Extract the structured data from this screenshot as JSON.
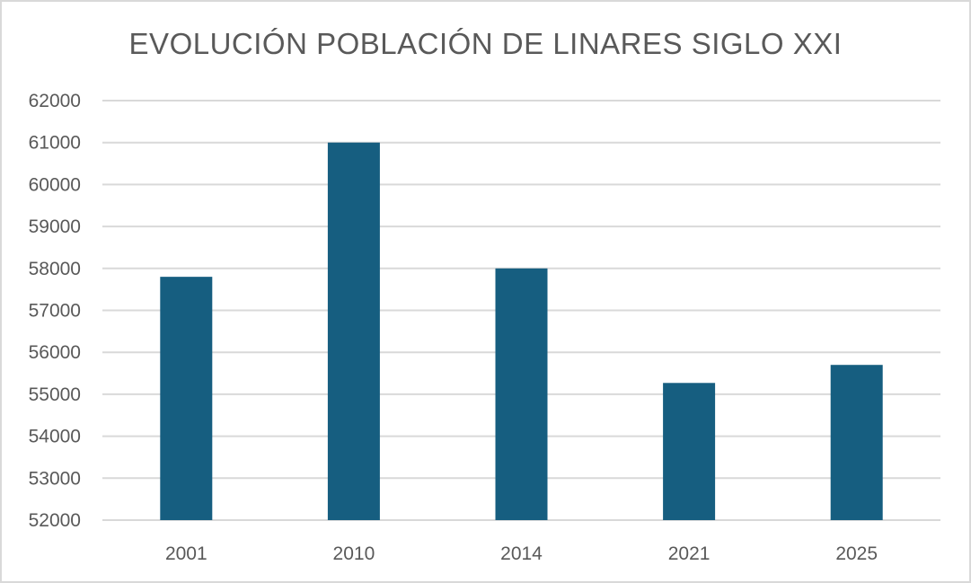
{
  "chart_data": {
    "type": "bar",
    "title": "EVOLUCIÓN POBLACIÓN DE LINARES SIGLO XXI",
    "categories": [
      "2001",
      "2010",
      "2014",
      "2021",
      "2025"
    ],
    "values": [
      57800,
      61000,
      58000,
      55270,
      55700
    ],
    "xlabel": "",
    "ylabel": "",
    "ylim": [
      52000,
      62000
    ],
    "yticks": [
      52000,
      53000,
      54000,
      55000,
      56000,
      57000,
      58000,
      59000,
      60000,
      61000,
      62000
    ],
    "grid": true,
    "legend": "none",
    "bar_color": "#165e80",
    "grid_color": "#d9d9d9",
    "text_color": "#595959"
  }
}
